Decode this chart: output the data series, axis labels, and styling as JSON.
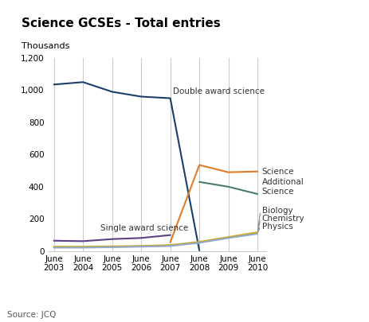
{
  "title": "Science GCSEs - Total entries",
  "ylabel": "Thousands",
  "source": "Source: JCQ",
  "years": [
    2003,
    2004,
    2005,
    2006,
    2007,
    2008,
    2009,
    2010
  ],
  "double_award": [
    1035,
    1050,
    990,
    960,
    950,
    5,
    null,
    null
  ],
  "single_award": [
    65,
    62,
    75,
    82,
    100,
    null,
    null,
    null
  ],
  "science": [
    null,
    null,
    null,
    null,
    55,
    535,
    490,
    495
  ],
  "additional_science": [
    null,
    null,
    null,
    null,
    null,
    430,
    400,
    355
  ],
  "biology": [
    28,
    28,
    30,
    33,
    38,
    58,
    88,
    118
  ],
  "chemistry": [
    25,
    25,
    27,
    30,
    35,
    55,
    85,
    112
  ],
  "physics": [
    22,
    22,
    25,
    28,
    32,
    52,
    82,
    108
  ],
  "color_double": "#1b3f6b",
  "color_single": "#5b4186",
  "color_science": "#e07b28",
  "color_additional": "#4a7c6b",
  "color_biology": "#c8b840",
  "color_chemistry": "#d4a017",
  "color_physics": "#8faacc",
  "ylim": [
    0,
    1200
  ],
  "yticks": [
    0,
    200,
    400,
    600,
    800,
    1000,
    1200
  ],
  "bg_color": "#ffffff",
  "grid_color": "#cccccc"
}
